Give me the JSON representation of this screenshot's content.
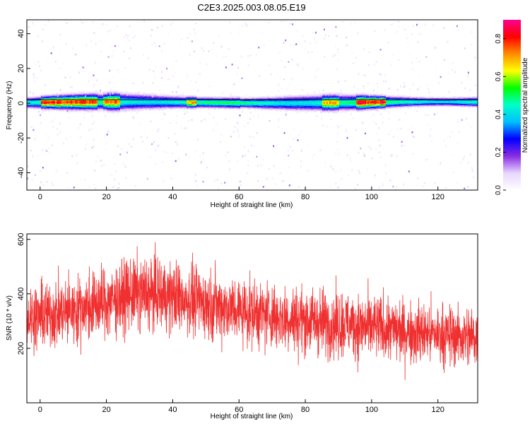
{
  "title": "C2E3.2025.003.08.05.E19",
  "colors": {
    "background": "#ffffff",
    "snr_line": "#f03030",
    "spectrogram_stops": [
      "#ffffff",
      "#e6d6ff",
      "#8a2be2",
      "#0000ff",
      "#00bfff",
      "#00ffc8",
      "#00ff00",
      "#ffff00",
      "#ff8c00",
      "#ff0000",
      "#ff0090"
    ]
  },
  "chart_data": [
    {
      "type": "heatmap",
      "name": "spectrogram",
      "xlabel": "Height of straight line (km)",
      "ylabel": "Frequency (Hz)",
      "xlim": [
        -4,
        132
      ],
      "ylim": [
        -50,
        48
      ],
      "x_ticks": [
        0,
        20,
        40,
        60,
        80,
        100,
        120
      ],
      "y_ticks": [
        40,
        20,
        0,
        -20,
        -40
      ],
      "colorbar": {
        "label": "Normalized spectral amplitude",
        "range": [
          0,
          0.9
        ],
        "ticks": [
          0.0,
          0.2,
          0.4,
          0.6,
          0.8
        ]
      },
      "reference_line_y": 2,
      "band": {
        "center_hz": 0.5,
        "half_width_hz": 3,
        "peak_segments": [
          {
            "x_start": 0,
            "x_end": 17,
            "amplitude": 0.85
          },
          {
            "x_start": 19,
            "x_end": 24,
            "amplitude": 0.8
          },
          {
            "x_start": 44,
            "x_end": 47,
            "amplitude": 0.75
          },
          {
            "x_start": 85,
            "x_end": 90,
            "amplitude": 0.75
          },
          {
            "x_start": 95,
            "x_end": 104,
            "amplitude": 0.9
          }
        ]
      }
    },
    {
      "type": "line",
      "name": "snr",
      "xlabel": "Height of straight line (km)",
      "ylabel": "SNR (10 * v/v)",
      "xlim": [
        -4,
        132
      ],
      "ylim": [
        0,
        620
      ],
      "x_ticks": [
        0,
        20,
        40,
        60,
        80,
        100,
        120
      ],
      "y_ticks": [
        200,
        400,
        600
      ],
      "envelope": {
        "x": [
          -4,
          0,
          10,
          20,
          28,
          35,
          45,
          60,
          75,
          90,
          105,
          120,
          132
        ],
        "mean": [
          310,
          320,
          340,
          370,
          400,
          400,
          380,
          340,
          310,
          290,
          270,
          250,
          240
        ],
        "spread": [
          100,
          110,
          110,
          115,
          120,
          120,
          115,
          110,
          110,
          110,
          105,
          100,
          100
        ]
      }
    }
  ]
}
